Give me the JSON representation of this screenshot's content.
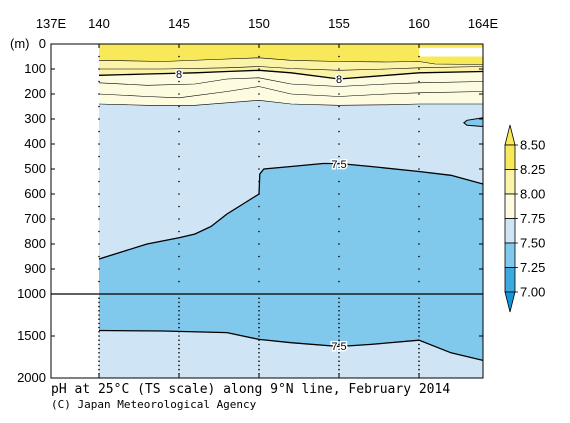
{
  "chart_data": {
    "type": "heatmap",
    "title": "pH at 25°C (TS scale) along 9°N line, February 2014",
    "credit": "(C) Japan Meteorological Agency",
    "y_unit_label": "(m)",
    "x_ticks": [
      {
        "value": 137,
        "label": "137E"
      },
      {
        "value": 140,
        "label": "140"
      },
      {
        "value": 145,
        "label": "145"
      },
      {
        "value": 150,
        "label": "150"
      },
      {
        "value": 155,
        "label": "155"
      },
      {
        "value": 160,
        "label": "160"
      },
      {
        "value": 164,
        "label": "164E"
      }
    ],
    "xlim": [
      137,
      164
    ],
    "upper_panel": {
      "ylim": [
        0,
        1000
      ],
      "ticks": [
        0,
        100,
        200,
        300,
        400,
        500,
        600,
        700,
        800,
        900,
        1000
      ]
    },
    "lower_panel": {
      "ylim": [
        1000,
        2000
      ],
      "ticks": [
        1500,
        2000
      ]
    },
    "data_coverage_x": [
      140,
      164
    ],
    "colorbar": {
      "levels": [
        "8.50",
        "8.25",
        "8.00",
        "7.75",
        "7.50",
        "7.25",
        "7.00"
      ],
      "colors": [
        "#f7e95a",
        "#fbf3a8",
        "#fdfbe0",
        "#cfe5f6",
        "#80c8ec",
        "#3aaadf",
        "#1296d8"
      ]
    },
    "contour_labels": [
      {
        "text": "8",
        "lon": 145,
        "depth": 120
      },
      {
        "text": "8",
        "lon": 155,
        "depth": 140
      },
      {
        "text": "7.5",
        "lon": 155,
        "depth": 480
      },
      {
        "text": "7.5",
        "lon": 155,
        "depth": 1620
      }
    ],
    "contours": {
      "c8_00": [
        [
          140,
          125
        ],
        [
          143,
          120
        ],
        [
          146,
          115
        ],
        [
          148,
          110
        ],
        [
          150,
          105
        ],
        [
          152,
          115
        ],
        [
          155,
          140
        ],
        [
          158,
          125
        ],
        [
          160,
          115
        ],
        [
          164,
          110
        ]
      ],
      "c8_10": [
        [
          140,
          100
        ],
        [
          144,
          100
        ],
        [
          148,
          95
        ],
        [
          150,
          90
        ],
        [
          152,
          98
        ],
        [
          155,
          105
        ],
        [
          158,
          100
        ],
        [
          160,
          95
        ],
        [
          164,
          90
        ]
      ],
      "c8_20": [
        [
          140,
          65
        ],
        [
          144,
          70
        ],
        [
          148,
          60
        ],
        [
          150,
          55
        ],
        [
          152,
          65
        ],
        [
          155,
          70
        ],
        [
          158,
          72
        ],
        [
          160,
          70
        ],
        [
          161,
          80
        ],
        [
          164,
          82
        ]
      ],
      "c7_90": [
        [
          140,
          155
        ],
        [
          143,
          165
        ],
        [
          146,
          160
        ],
        [
          148,
          140
        ],
        [
          150,
          135
        ],
        [
          152,
          160
        ],
        [
          155,
          170
        ],
        [
          158,
          160
        ],
        [
          160,
          155
        ],
        [
          164,
          150
        ]
      ],
      "c7_80": [
        [
          140,
          200
        ],
        [
          143,
          210
        ],
        [
          145,
          215
        ],
        [
          148,
          190
        ],
        [
          150,
          170
        ],
        [
          152,
          200
        ],
        [
          155,
          210
        ],
        [
          158,
          200
        ],
        [
          160,
          195
        ],
        [
          164,
          190
        ]
      ],
      "c7_76": [
        [
          140,
          240
        ],
        [
          143,
          245
        ],
        [
          146,
          245
        ],
        [
          148,
          235
        ],
        [
          150,
          225
        ],
        [
          152,
          240
        ],
        [
          155,
          245
        ],
        [
          158,
          243
        ],
        [
          160,
          240
        ],
        [
          164,
          240
        ]
      ],
      "c7_50_upper": [
        [
          140,
          860
        ],
        [
          141,
          840
        ],
        [
          143,
          800
        ],
        [
          145,
          775
        ],
        [
          146,
          760
        ],
        [
          147,
          730
        ],
        [
          148,
          680
        ],
        [
          149,
          640
        ],
        [
          149.5,
          620
        ],
        [
          150,
          600
        ],
        [
          150.05,
          520
        ],
        [
          150.3,
          500
        ],
        [
          152,
          490
        ],
        [
          154,
          478
        ],
        [
          155,
          478
        ],
        [
          157,
          490
        ],
        [
          160,
          510
        ],
        [
          162,
          525
        ],
        [
          164,
          560
        ]
      ],
      "c7_50_lower": [
        [
          140,
          1435
        ],
        [
          144,
          1440
        ],
        [
          148,
          1460
        ],
        [
          150,
          1540
        ],
        [
          152,
          1580
        ],
        [
          155,
          1625
        ],
        [
          157,
          1600
        ],
        [
          160,
          1550
        ],
        [
          162,
          1700
        ],
        [
          164,
          1790
        ]
      ],
      "c7_50_east_patch": [
        [
          164,
          295
        ],
        [
          163,
          305
        ],
        [
          162.8,
          315
        ],
        [
          163,
          325
        ],
        [
          164,
          330
        ]
      ]
    }
  }
}
